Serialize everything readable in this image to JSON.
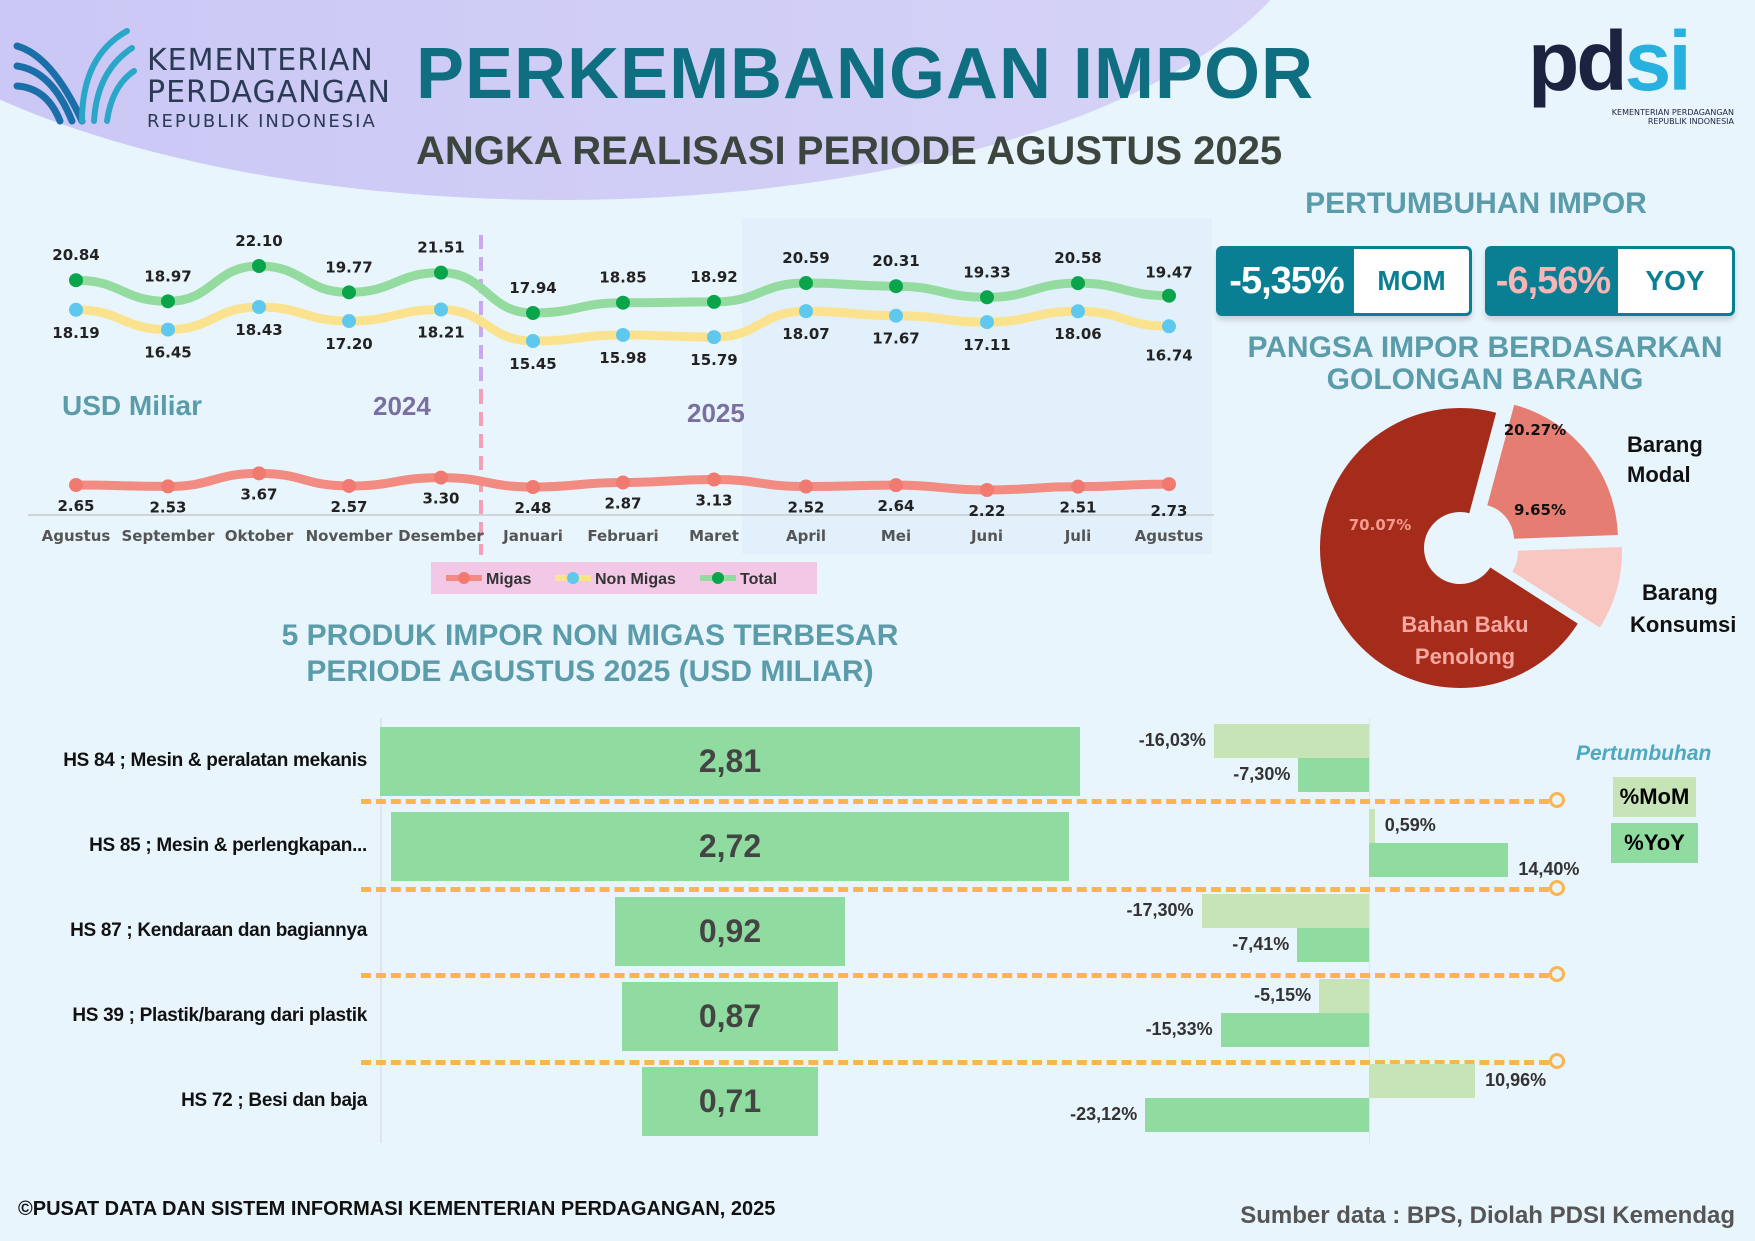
{
  "header": {
    "title": "PERKEMBANGAN IMPOR",
    "subtitle": "ANGKA REALISASI PERIODE AGUSTUS 2025",
    "ministry_logo": {
      "line1": "KEMENTERIAN",
      "line2": "PERDAGANGAN",
      "line3": "REPUBLIK INDONESIA"
    },
    "pdsi_logo": {
      "word": "pdsi",
      "sub1": "KEMENTERIAN PERDAGANGAN",
      "sub2": "REPUBLIK INDONESIA"
    }
  },
  "growth": {
    "title": "PERTUMBUHAN IMPOR",
    "mom": {
      "value": "-5,35%",
      "label": "MOM",
      "value_color": "#ffffff"
    },
    "yoy": {
      "value": "-6,56%",
      "label": "YOY",
      "value_color": "#f7b5b5"
    }
  },
  "chart_data": [
    {
      "type": "line",
      "unit_label": "USD Miliar",
      "year_labels": [
        "2024",
        "2025"
      ],
      "categories": [
        "Agustus",
        "September",
        "Oktober",
        "November",
        "Desember",
        "Januari",
        "Februari",
        "Maret",
        "April",
        "Mei",
        "Juni",
        "Juli",
        "Agustus"
      ],
      "series": [
        {
          "name": "Migas",
          "color": "#f28b82",
          "marker": "#f07a70",
          "values": [
            2.65,
            2.53,
            3.67,
            2.57,
            3.3,
            2.48,
            2.87,
            3.13,
            2.52,
            2.64,
            2.22,
            2.51,
            2.73
          ]
        },
        {
          "name": "Non Migas",
          "color": "#fbe28f",
          "marker": "#5ec8ef",
          "values": [
            18.19,
            16.45,
            18.43,
            17.2,
            18.21,
            15.45,
            15.98,
            15.79,
            18.07,
            17.67,
            17.11,
            18.06,
            16.74
          ]
        },
        {
          "name": "Total",
          "color": "#93db9e",
          "marker": "#0aa54a",
          "values": [
            20.84,
            18.97,
            22.1,
            19.77,
            21.51,
            17.94,
            18.85,
            18.92,
            20.59,
            20.31,
            19.33,
            20.58,
            19.47
          ]
        }
      ],
      "legend": "bottom"
    },
    {
      "type": "pie",
      "title": "PANGSA IMPOR BERDASARKAN GOLONGAN BARANG",
      "slices": [
        {
          "name": "Barang Modal",
          "label_line1": "Barang",
          "label_line2": "Modal",
          "value": 20.27,
          "display": "20.27%",
          "color": "#e57d72"
        },
        {
          "name": "Barang Konsumsi",
          "label_line1": "Barang",
          "label_line2": "Konsumsi",
          "value": 9.65,
          "display": "9.65%",
          "color": "#f8c7c1"
        },
        {
          "name": "Bahan Baku Penolong",
          "label_line1": "Bahan Baku",
          "label_line2": "Penolong",
          "value": 70.07,
          "display": "70.07%",
          "color": "#a52b1b"
        }
      ]
    },
    {
      "type": "bar",
      "title_line1": "5 PRODUK IMPOR NON MIGAS TERBESAR",
      "title_line2": "PERIODE AGUSTUS 2025 (USD MILIAR)",
      "categories": [
        "HS 84 ; Mesin & peralatan mekanis",
        "HS 85 ; Mesin & perlengkapan...",
        "HS 87 ; Kendaraan dan bagiannya",
        "HS 39 ; Plastik/barang dari plastik",
        "HS 72 ; Besi dan baja"
      ],
      "values": [
        2.81,
        2.72,
        0.92,
        0.87,
        0.71
      ],
      "value_labels": [
        "2,81",
        "2,72",
        "0,92",
        "0,87",
        "0,71"
      ],
      "color": "#90dca0"
    },
    {
      "type": "bar",
      "orientation": "horizontal",
      "legend_title": "Pertumbuhan",
      "series": [
        {
          "name": "%MoM",
          "color": "#c6e4b6",
          "values": [
            -16.03,
            0.59,
            -17.3,
            -5.15,
            10.96
          ],
          "labels": [
            "-16,03%",
            "0,59%",
            "-17,30%",
            "-5,15%",
            "10,96%"
          ]
        },
        {
          "name": "%YoY",
          "color": "#90dca0",
          "values": [
            -7.3,
            14.4,
            -7.41,
            -15.33,
            -23.12
          ],
          "labels": [
            "-7,30%",
            "14,40%",
            "-7,41%",
            "-15,33%",
            "-23,12%"
          ]
        }
      ]
    }
  ],
  "footer": {
    "copyright": "©PUSAT DATA DAN SISTEM INFORMASI KEMENTERIAN PERDAGANGAN, 2025",
    "source": "Sumber data : BPS, Diolah PDSI Kemendag"
  }
}
